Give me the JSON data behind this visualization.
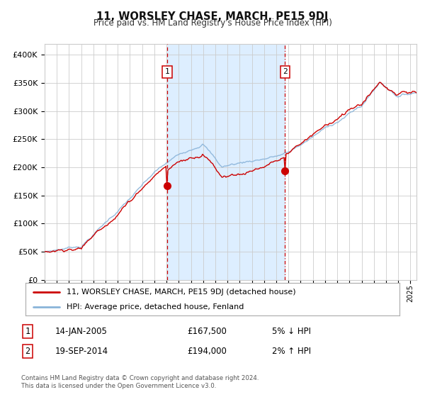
{
  "title": "11, WORSLEY CHASE, MARCH, PE15 9DJ",
  "subtitle": "Price paid vs. HM Land Registry's House Price Index (HPI)",
  "hpi_color": "#8ab4d9",
  "price_color": "#cc0000",
  "marker_color": "#cc0000",
  "bg_color": "#ffffff",
  "plot_bg_color": "#ffffff",
  "shaded_region_color": "#ddeeff",
  "grid_color": "#cccccc",
  "ylim": [
    0,
    420000
  ],
  "yticks": [
    0,
    50000,
    100000,
    150000,
    200000,
    250000,
    300000,
    350000,
    400000
  ],
  "ytick_labels": [
    "£0",
    "£50K",
    "£100K",
    "£150K",
    "£200K",
    "£250K",
    "£300K",
    "£350K",
    "£400K"
  ],
  "legend_line1": "11, WORSLEY CHASE, MARCH, PE15 9DJ (detached house)",
  "legend_line2": "HPI: Average price, detached house, Fenland",
  "annotation1_label": "1",
  "annotation1_date": "14-JAN-2005",
  "annotation1_price": "£167,500",
  "annotation1_hpi": "5% ↓ HPI",
  "annotation2_label": "2",
  "annotation2_date": "19-SEP-2014",
  "annotation2_price": "£194,000",
  "annotation2_hpi": "2% ↑ HPI",
  "purchase1_x": 2005.04,
  "purchase1_y": 167500,
  "purchase2_x": 2014.72,
  "purchase2_y": 194000,
  "vline1_x": 2005.04,
  "vline2_x": 2014.72,
  "footer": "Contains HM Land Registry data © Crown copyright and database right 2024.\nThis data is licensed under the Open Government Licence v3.0.",
  "xmin": 1995.0,
  "xmax": 2025.5
}
